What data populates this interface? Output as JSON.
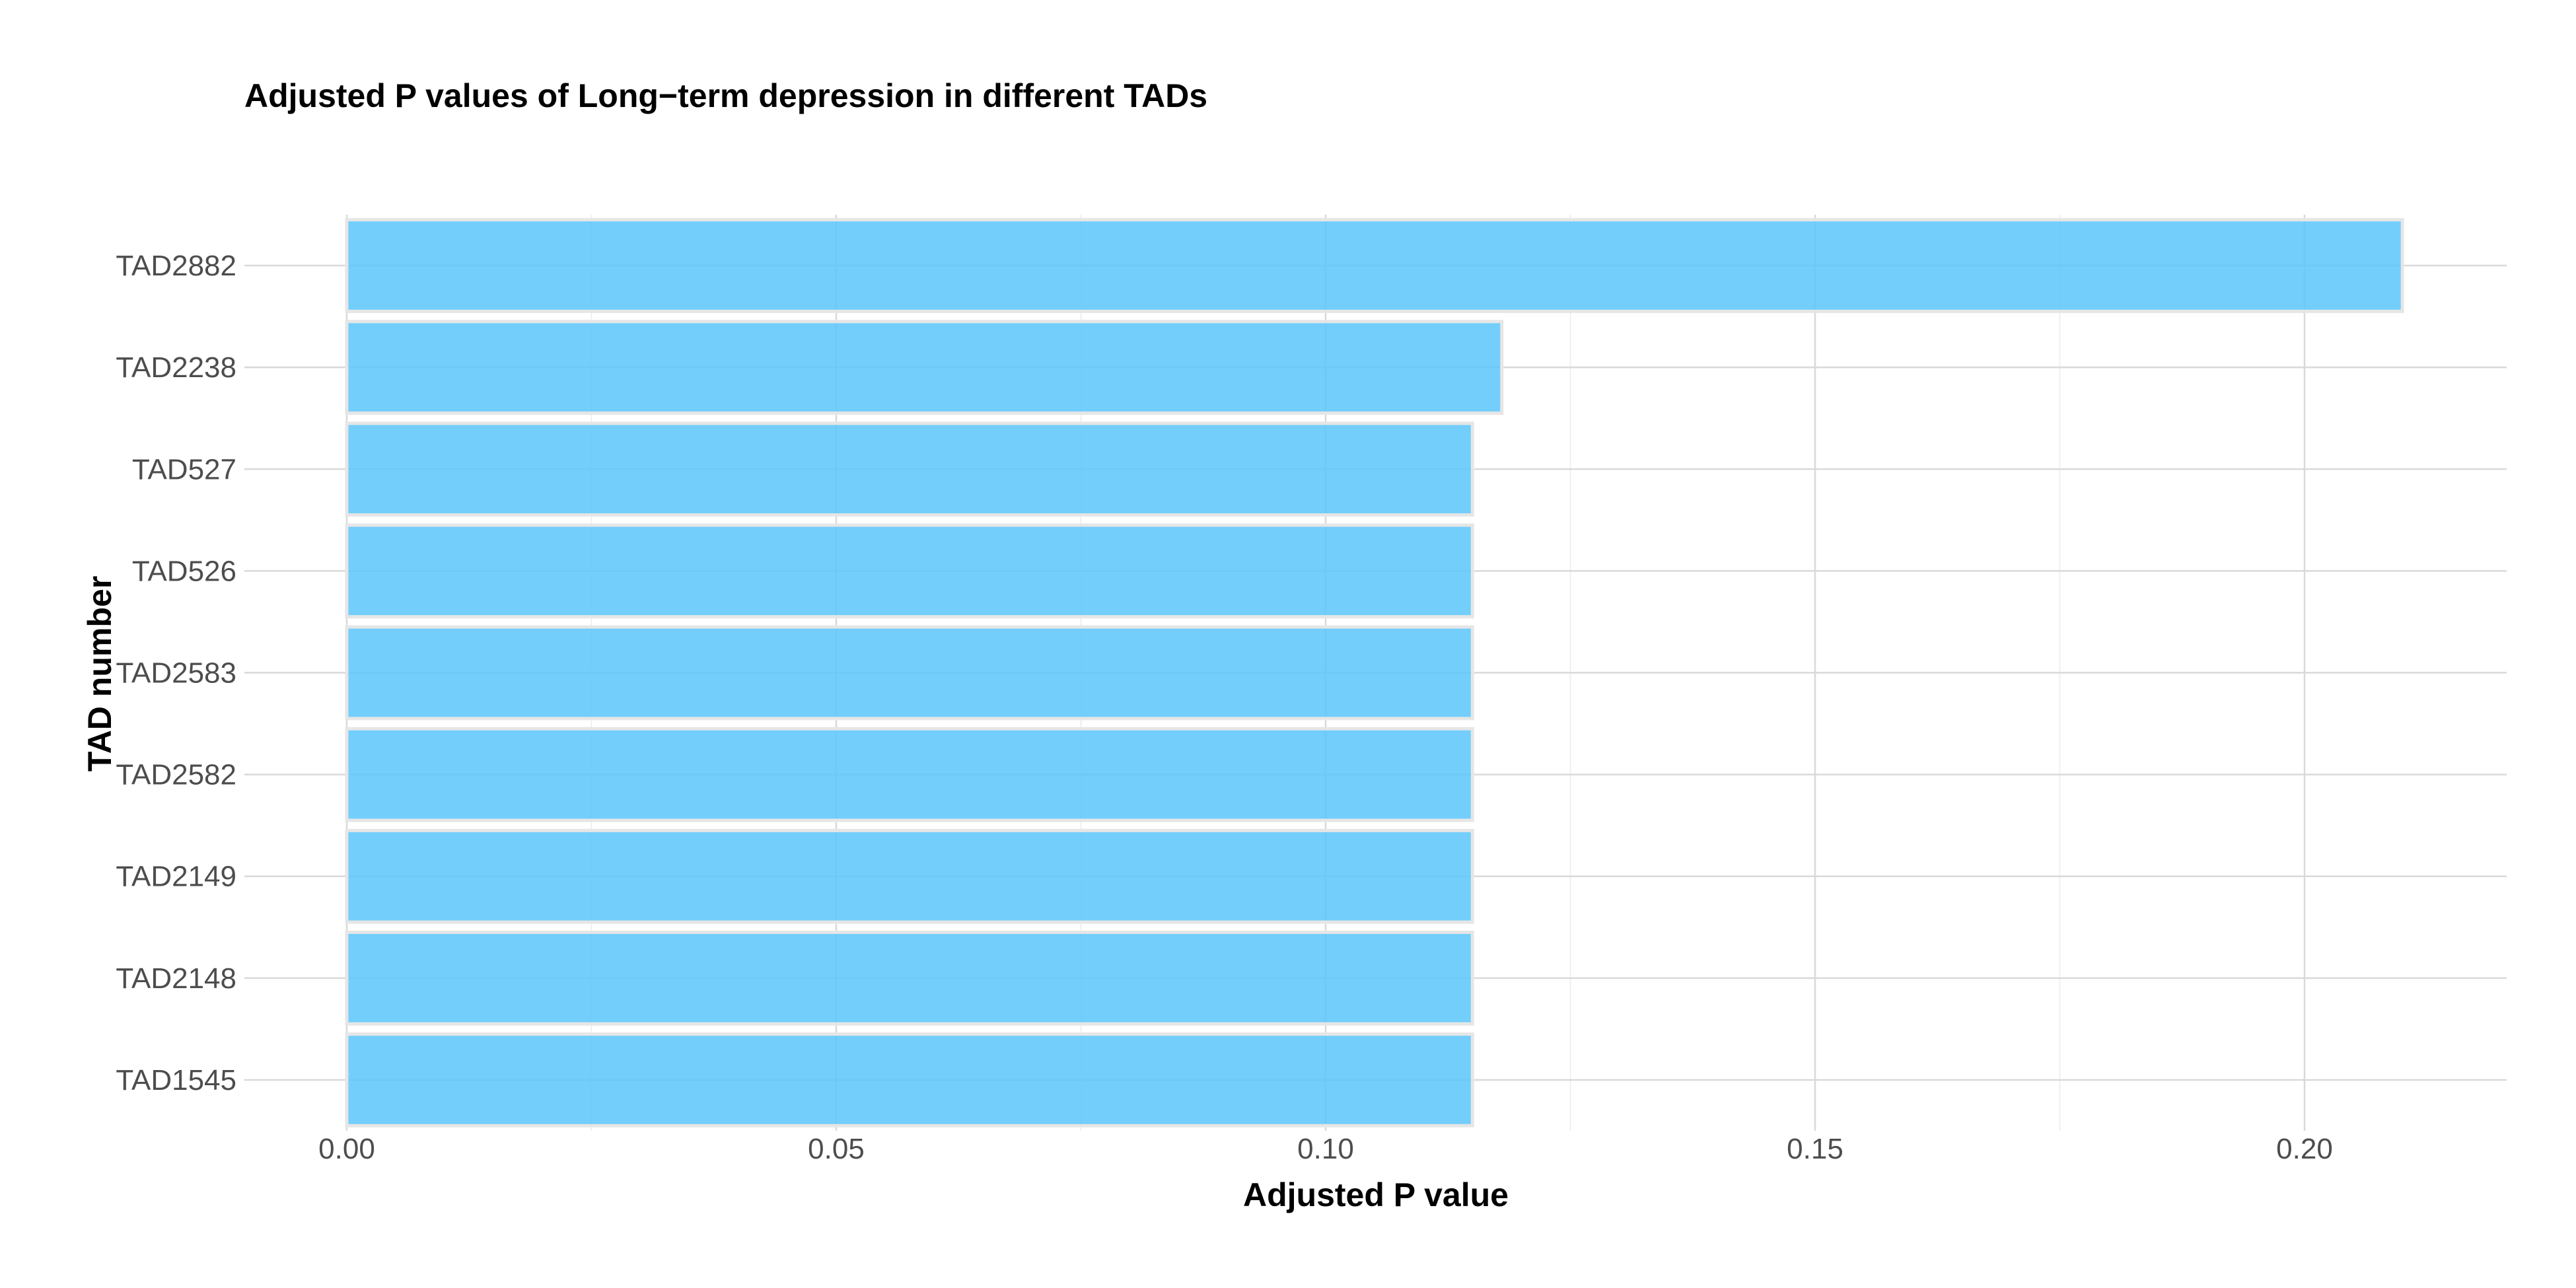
{
  "chart_data": {
    "type": "bar",
    "orientation": "horizontal",
    "title": "Adjusted P values of Long−term depression in different TADs",
    "xlabel": "Adjusted P value",
    "ylabel": "TAD number",
    "categories": [
      "TAD2882",
      "TAD2238",
      "TAD527",
      "TAD526",
      "TAD2583",
      "TAD2582",
      "TAD2149",
      "TAD2148",
      "TAD1545"
    ],
    "values": [
      0.21,
      0.118,
      0.115,
      0.115,
      0.115,
      0.115,
      0.115,
      0.115,
      0.115
    ],
    "xlim": [
      0,
      0.22
    ],
    "xticks": [
      0.0,
      0.05,
      0.1,
      0.15,
      0.2
    ],
    "xtick_labels": [
      "0.00",
      "0.05",
      "0.10",
      "0.15",
      "0.20"
    ],
    "bar_color": "#5bc5fa",
    "bar_outline_color": "#e6e6e6",
    "grid": true,
    "legend": false
  }
}
